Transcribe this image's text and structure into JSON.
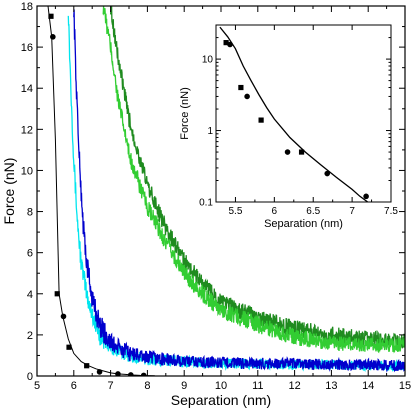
{
  "chart_data": [
    {
      "type": "line",
      "xlabel": "Separation (nm)",
      "ylabel": "Force (nN)",
      "xlim": [
        5,
        15
      ],
      "ylim": [
        0,
        18
      ],
      "xticks": [
        5,
        6,
        7,
        8,
        9,
        10,
        11,
        12,
        13,
        14,
        15
      ],
      "yticks": [
        0,
        2,
        4,
        6,
        8,
        10,
        12,
        14,
        16,
        18
      ],
      "series": [
        {
          "style": "black-line-with-markers",
          "color": "#000000",
          "x": [
            5.3,
            5.4,
            5.5,
            5.6,
            5.7,
            5.85,
            6.0,
            6.2,
            6.4,
            6.6,
            6.8,
            7.0,
            7.2,
            7.4,
            7.6,
            7.8,
            8.0,
            8.2
          ],
          "y": [
            18.0,
            16.5,
            11.5,
            4.0,
            2.9,
            1.8,
            1.1,
            0.7,
            0.5,
            0.35,
            0.25,
            0.15,
            0.1,
            0.08,
            0.05,
            0.03,
            0.02,
            0.01
          ],
          "marker_x": [
            5.38,
            5.43,
            5.55,
            5.72,
            5.87,
            6.35,
            6.7,
            7.2,
            7.55,
            7.9
          ],
          "marker_y": [
            17.5,
            16.5,
            4.0,
            2.9,
            1.4,
            0.5,
            0.2,
            0.1,
            0.05,
            0.03
          ],
          "marker_shape": [
            "square",
            "circle",
            "square",
            "circle",
            "square",
            "square",
            "circle",
            "circle",
            "circle",
            "circle"
          ]
        },
        {
          "style": "cyan-noisy",
          "color": "#00e5ee",
          "x": [
            5.85,
            5.9,
            6.0,
            6.1,
            6.2,
            6.35,
            6.5,
            6.7,
            7.0,
            7.5,
            8.0,
            9.0,
            10.0,
            11.0,
            12.0,
            13.0,
            14.0,
            15.0
          ],
          "y": [
            18.0,
            15.0,
            10.5,
            7.5,
            5.5,
            4.0,
            3.0,
            2.0,
            1.4,
            1.0,
            0.8,
            0.7,
            0.6,
            0.6,
            0.55,
            0.55,
            0.5,
            0.5
          ],
          "noise": 0.35
        },
        {
          "style": "blue-noisy",
          "color": "#0000cd",
          "x": [
            6.0,
            6.05,
            6.15,
            6.25,
            6.35,
            6.5,
            6.7,
            7.0,
            7.5,
            8.0,
            9.0,
            10.0,
            11.0,
            12.0,
            13.0,
            14.0,
            15.0
          ],
          "y": [
            18.0,
            15.0,
            10.5,
            7.5,
            5.5,
            3.8,
            2.5,
            1.6,
            1.1,
            0.9,
            0.7,
            0.65,
            0.6,
            0.6,
            0.55,
            0.55,
            0.5
          ],
          "noise": 0.4
        },
        {
          "style": "light-green-noisy",
          "color": "#32cd32",
          "x": [
            6.8,
            7.0,
            7.2,
            7.5,
            7.8,
            8.0,
            8.5,
            9.0,
            9.5,
            10.0,
            11.0,
            12.0,
            13.0,
            14.0,
            15.0
          ],
          "y": [
            18.0,
            16.0,
            13.5,
            10.8,
            9.2,
            8.2,
            6.5,
            5.0,
            4.0,
            3.2,
            2.5,
            1.9,
            1.6,
            1.5,
            1.5
          ],
          "noise": 0.3
        },
        {
          "style": "dark-green-noisy",
          "color": "#1f8b1f",
          "x": [
            7.0,
            7.2,
            7.5,
            7.8,
            8.0,
            8.5,
            9.0,
            9.5,
            10.0,
            11.0,
            12.0,
            13.0,
            14.0,
            15.0
          ],
          "y": [
            18.0,
            15.5,
            12.5,
            10.5,
            9.3,
            7.2,
            5.6,
            4.5,
            3.6,
            2.8,
            2.3,
            2.0,
            1.8,
            1.7
          ],
          "noise": 0.3
        }
      ]
    },
    {
      "type": "scatter",
      "inset": true,
      "xlabel": "Separation (nm)",
      "ylabel": "Force (nN)",
      "xlim": [
        5.25,
        7.5
      ],
      "ylim": [
        0.1,
        30
      ],
      "yscale": "log",
      "xticks": [
        5.5,
        6,
        6.5,
        7,
        7.5
      ],
      "yticks": [
        0.1,
        1,
        10
      ],
      "ytick_labels": [
        "0.1",
        "1",
        "10"
      ],
      "fit": {
        "x": [
          5.3,
          5.4,
          5.5,
          5.6,
          5.7,
          5.8,
          5.9,
          6.0,
          6.2,
          6.4,
          6.6,
          6.8,
          7.0,
          7.1,
          7.2
        ],
        "y": [
          28.0,
          20.5,
          14.0,
          8.0,
          5.0,
          3.2,
          2.1,
          1.45,
          0.8,
          0.5,
          0.33,
          0.22,
          0.15,
          0.12,
          0.1
        ]
      },
      "points": {
        "x": [
          5.38,
          5.43,
          5.57,
          5.65,
          5.83,
          6.17,
          6.35,
          6.68,
          7.18
        ],
        "y": [
          17.0,
          16.0,
          4.0,
          3.0,
          1.4,
          0.5,
          0.5,
          0.25,
          0.12
        ],
        "shape": [
          "square",
          "circle",
          "square",
          "circle",
          "square",
          "circle",
          "square",
          "circle",
          "circle"
        ]
      }
    }
  ]
}
